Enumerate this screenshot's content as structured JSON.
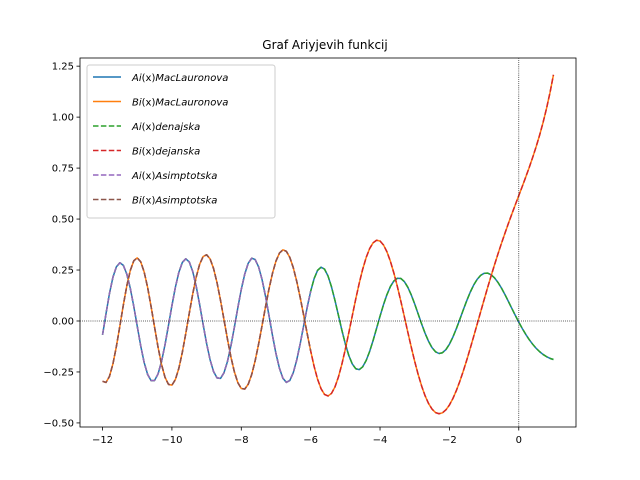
{
  "chart_data": {
    "type": "line",
    "title": "Graf Ariyjevih funkcij",
    "xlabel": "",
    "ylabel": "",
    "xlim": [
      -12.65,
      1.65
    ],
    "ylim": [
      -0.52,
      1.29
    ],
    "x_ticks": [
      -12,
      -10,
      -8,
      -6,
      -4,
      -2,
      0
    ],
    "x_tick_labels": [
      "−12",
      "−10",
      "−8",
      "−6",
      "−4",
      "−2",
      "0"
    ],
    "y_ticks": [
      -0.5,
      -0.25,
      0.0,
      0.25,
      0.5,
      0.75,
      1.0,
      1.25
    ],
    "y_tick_labels": [
      "−0.50",
      "−0.25",
      "0.00",
      "0.25",
      "0.50",
      "0.75",
      "1.00",
      "1.25"
    ],
    "grid": false,
    "reference_lines": {
      "x": 0,
      "y": 0,
      "style": "dotted",
      "color": "#000000"
    },
    "legend_position": "upper-left",
    "x_samples": [
      -12.0,
      -11.9,
      -11.8,
      -11.7,
      -11.6,
      -11.5,
      -11.4,
      -11.3,
      -11.2,
      -11.1,
      -11.0,
      -10.9,
      -10.8,
      -10.7,
      -10.6,
      -10.5,
      -10.4,
      -10.3,
      -10.2,
      -10.1,
      -10.0,
      -9.9,
      -9.8,
      -9.7,
      -9.6,
      -9.5,
      -9.4,
      -9.3,
      -9.2,
      -9.1,
      -9.0,
      -8.9,
      -8.8,
      -8.7,
      -8.6,
      -8.5,
      -8.4,
      -8.3,
      -8.2,
      -8.1,
      -8.0,
      -7.9,
      -7.8,
      -7.7,
      -7.6,
      -7.5,
      -7.4,
      -7.3,
      -7.2,
      -7.1,
      -7.0,
      -6.9,
      -6.8,
      -6.7,
      -6.6,
      -6.5,
      -6.4,
      -6.3,
      -6.2,
      -6.1,
      -6.0,
      -5.9,
      -5.8,
      -5.7,
      -5.6,
      -5.5,
      -5.4,
      -5.3,
      -5.2,
      -5.1,
      -5.0,
      -4.9,
      -4.8,
      -4.7,
      -4.6,
      -4.5,
      -4.4,
      -4.3,
      -4.2,
      -4.1,
      -4.0,
      -3.9,
      -3.8,
      -3.7,
      -3.6,
      -3.5,
      -3.4,
      -3.3,
      -3.2,
      -3.1,
      -3.0,
      -2.9,
      -2.8,
      -2.7,
      -2.6,
      -2.5,
      -2.4,
      -2.3,
      -2.2,
      -2.1,
      -2.0,
      -1.9,
      -1.8,
      -1.7,
      -1.6,
      -1.5,
      -1.4,
      -1.3,
      -1.2,
      -1.1,
      -1.0,
      -0.9,
      -0.8,
      -0.7,
      -0.6,
      -0.5,
      -0.4,
      -0.3,
      -0.2,
      -0.1,
      0.0,
      0.1,
      0.2,
      0.3,
      0.4,
      0.5,
      0.6,
      0.7,
      0.8,
      0.9,
      1.0
    ],
    "ai_values": [
      -0.0676,
      0.0357,
      0.1353,
      0.215,
      0.2661,
      0.2857,
      0.2729,
      0.2297,
      0.1603,
      0.0722,
      -0.0253,
      -0.1213,
      -0.2041,
      -0.2625,
      -0.2924,
      -0.2917,
      -0.2597,
      -0.1994,
      -0.1173,
      -0.0223,
      0.0757,
      0.1655,
      0.2387,
      0.2872,
      0.305,
      0.2897,
      0.243,
      0.1703,
      0.08,
      -0.0174,
      -0.1103,
      -0.1898,
      -0.2477,
      -0.2792,
      -0.2817,
      -0.2544,
      -0.1996,
      -0.1226,
      -0.0313,
      0.0647,
      0.155,
      0.2303,
      0.2832,
      0.3081,
      0.3014,
      0.2649,
      0.2024,
      0.1199,
      0.0254,
      -0.0713,
      -0.1599,
      -0.2321,
      -0.2807,
      -0.3012,
      -0.2915,
      -0.2531,
      -0.1905,
      -0.1103,
      -0.0212,
      0.067,
      0.1458,
      0.208,
      0.2484,
      0.264,
      0.2544,
      0.2209,
      0.1679,
      0.1014,
      0.0283,
      -0.045,
      -0.1128,
      -0.1694,
      -0.2108,
      -0.2342,
      -0.2387,
      -0.2246,
      -0.1938,
      -0.1495,
      -0.0956,
      -0.0365,
      0.0235,
      0.0801,
      0.1298,
      0.1694,
      0.1965,
      0.2097,
      0.2085,
      0.1934,
      0.1659,
      0.1283,
      0.0834,
      0.0345,
      -0.0148,
      -0.0606,
      -0.1002,
      -0.131,
      -0.1511,
      -0.1595,
      -0.1557,
      -0.1402,
      -0.1141,
      -0.0792,
      -0.0378,
      0.0076,
      0.0543,
      0.0996,
      0.141,
      0.1764,
      0.2043,
      0.2236,
      0.2338,
      0.2349,
      0.2272,
      0.2116,
      0.1893,
      0.1616,
      0.1301,
      0.0963,
      0.0617,
      0.0275,
      -0.0055,
      -0.0366,
      -0.0652,
      -0.091,
      -0.1138,
      -0.1336,
      -0.1503,
      -0.1641,
      -0.175,
      -0.1833,
      -0.189
    ],
    "series": [
      {
        "name": "Ai(x)MacLauronova",
        "label_prefix": "Ai",
        "label_arg": "(x)",
        "label_suffix": "MacLauronova",
        "color": "#1f77b4",
        "style": "solid"
      },
      {
        "name": "Bi(x)MacLauronova",
        "label_prefix": "Bi",
        "label_arg": "(x)",
        "label_suffix": "MacLauronova",
        "color": "#ff7f0e",
        "style": "solid"
      },
      {
        "name": "Ai(x)denajska",
        "label_prefix": "Ai",
        "label_arg": "(x)",
        "label_suffix": "denajska",
        "color": "#2ca02c",
        "style": "dashed"
      },
      {
        "name": "Bi(x)dejanska",
        "label_prefix": "Bi",
        "label_arg": "(x)",
        "label_suffix": "dejanska",
        "color": "#d62728",
        "style": "dashed"
      },
      {
        "name": "Ai(x)Asimptotska",
        "label_prefix": "Ai",
        "label_arg": "(x)",
        "label_suffix": "Asimptotska",
        "color": "#9467bd",
        "style": "dashed"
      },
      {
        "name": "Bi(x)Asimptotska",
        "label_prefix": "Bi",
        "label_arg": "(x)",
        "label_suffix": "Asimptotska",
        "color": "#8c564b",
        "style": "dashed"
      }
    ]
  }
}
